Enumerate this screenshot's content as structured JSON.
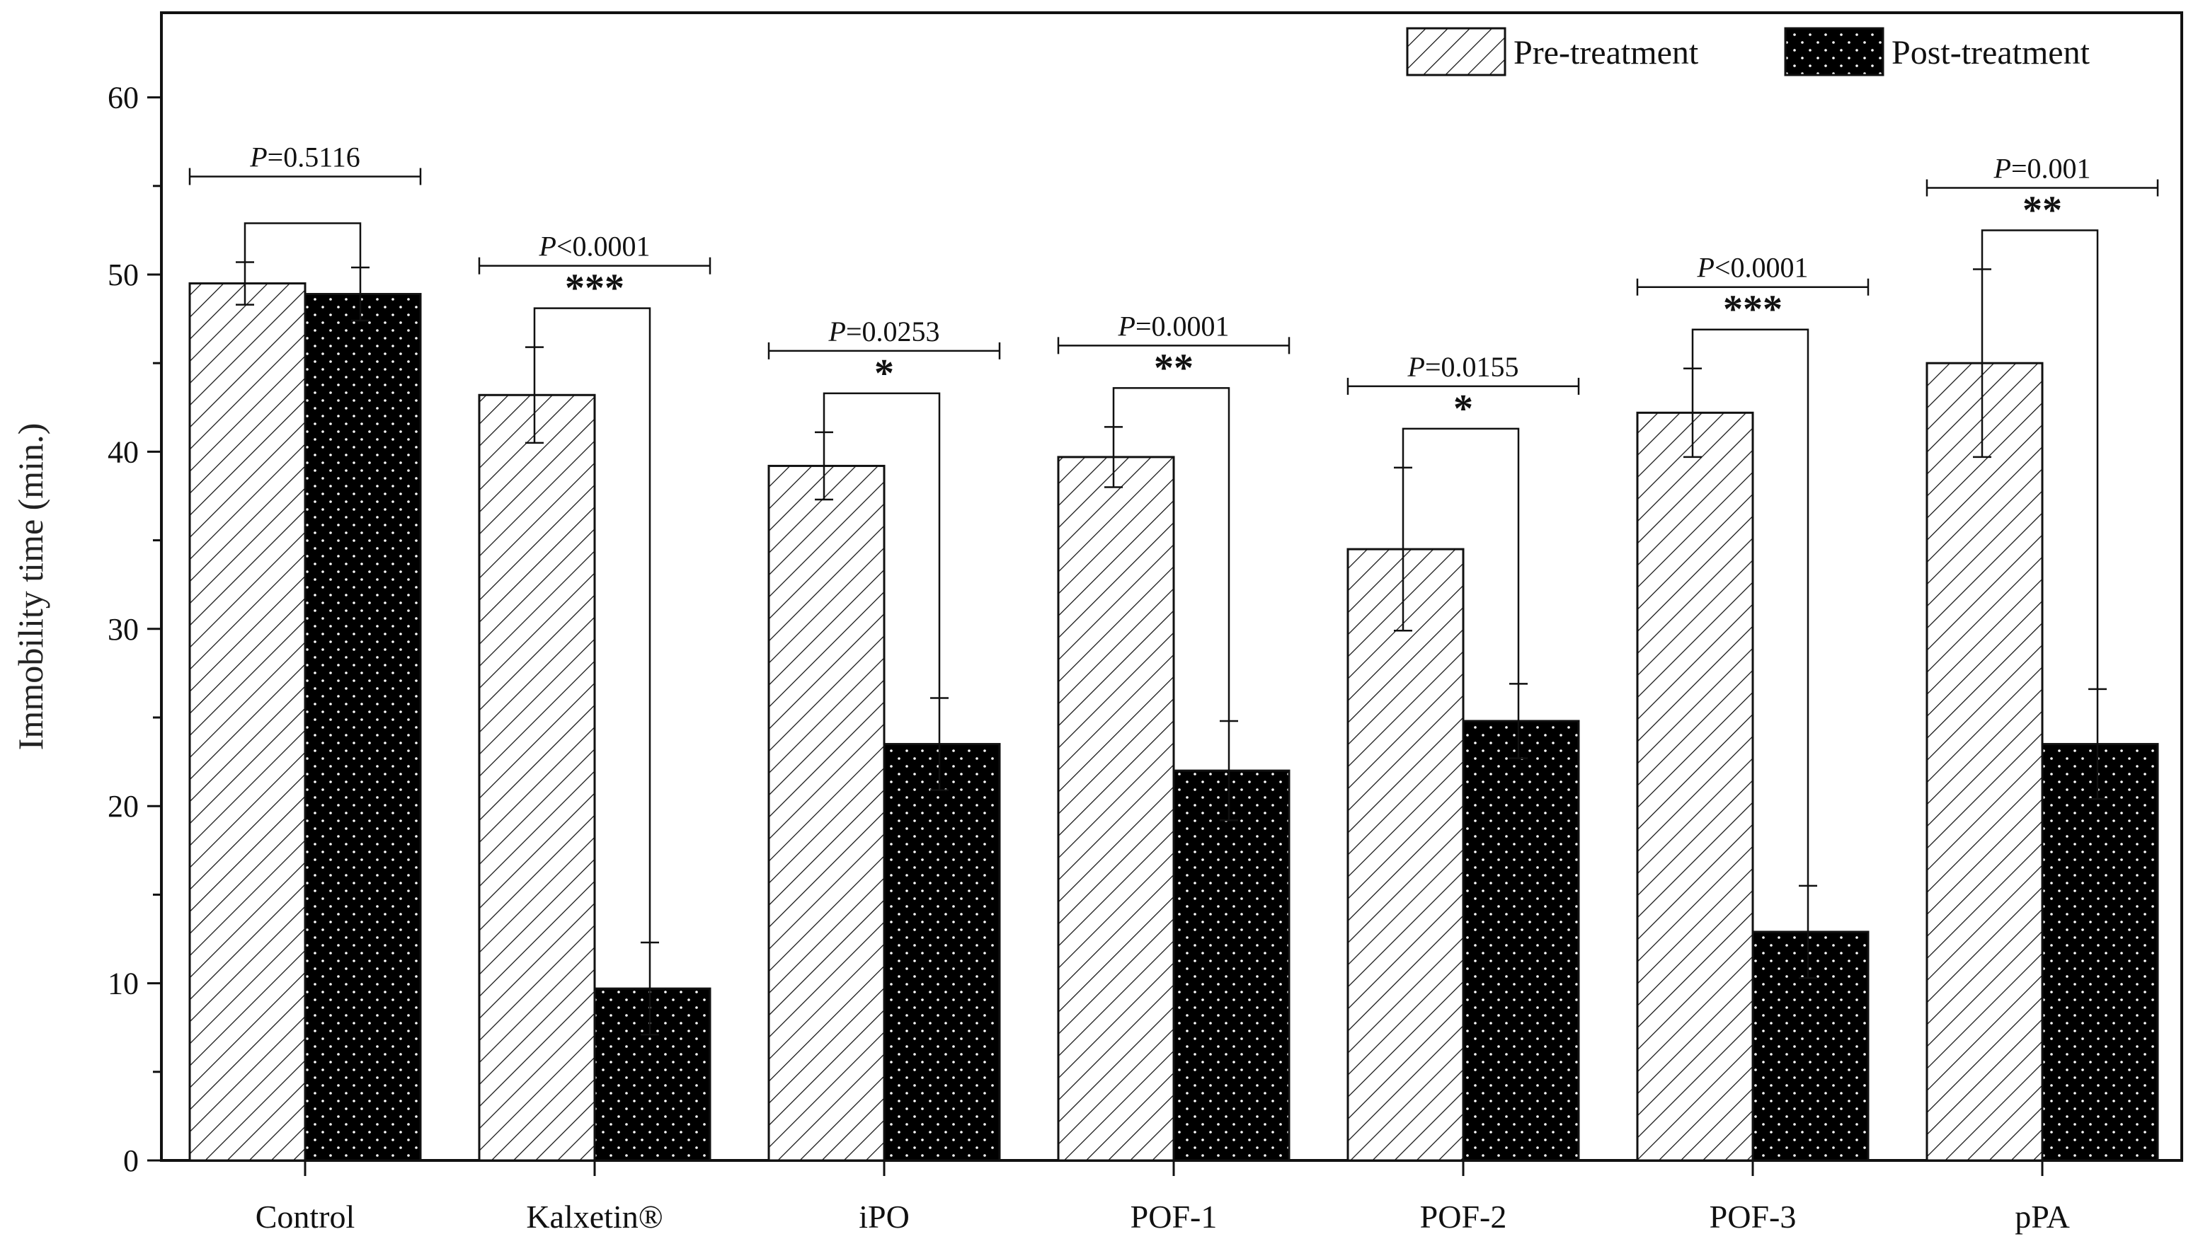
{
  "chart_data": {
    "type": "bar",
    "title": "",
    "xlabel": "",
    "ylabel": "Immobility time (min.)",
    "ylim": [
      0,
      65
    ],
    "yticks": [
      "0",
      "10",
      "20",
      "30",
      "40",
      "50",
      "60"
    ],
    "categories": [
      "Control",
      "Kalxetin®",
      "iPO",
      "POF-1",
      "POF-2",
      "POF-3",
      "pPA"
    ],
    "series": [
      {
        "name": "Pre-treatment",
        "values": [
          49.5,
          43.2,
          39.2,
          39.7,
          34.5,
          42.2,
          45.0
        ],
        "errors": [
          1.2,
          2.7,
          1.9,
          1.7,
          4.6,
          2.5,
          5.3
        ],
        "pattern": "hatch"
      },
      {
        "name": "Post-treatment",
        "values": [
          48.9,
          9.7,
          23.5,
          22.0,
          24.8,
          12.9,
          23.5
        ],
        "errors": [
          1.5,
          2.6,
          2.6,
          2.8,
          2.1,
          2.6,
          3.1
        ],
        "pattern": "dots"
      }
    ],
    "annotations": [
      {
        "p_prefix": "P",
        "p_rest": "=0.5116",
        "stars": ""
      },
      {
        "p_prefix": "P",
        "p_rest": "<0.0001",
        "stars": "***"
      },
      {
        "p_prefix": "P",
        "p_rest": "=0.0253",
        "stars": "*"
      },
      {
        "p_prefix": "P",
        "p_rest": "=0.0001",
        "stars": "**"
      },
      {
        "p_prefix": "P",
        "p_rest": "=0.0155",
        "stars": "*"
      },
      {
        "p_prefix": "P",
        "p_rest": "<0.0001",
        "stars": "***"
      },
      {
        "p_prefix": "P",
        "p_rest": "=0.001",
        "stars": "**"
      }
    ],
    "legend": {
      "position": "top-right",
      "entries": [
        "Pre-treatment",
        "Post-treatment"
      ]
    },
    "grid": false
  },
  "colors": {
    "axis": "#111111",
    "post_fill": "#000000",
    "pre_fill": "#ffffff"
  }
}
